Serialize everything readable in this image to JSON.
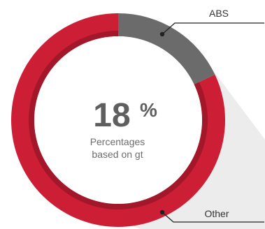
{
  "chart_data": {
    "type": "pie",
    "donut": true,
    "categories": [
      "ABS",
      "Other"
    ],
    "values": [
      18,
      82
    ],
    "unit": "%",
    "center_value": "18",
    "center_unit": "%",
    "center_caption_line1": "Percentages",
    "center_caption_line2": "based on gt",
    "legend": "callouts"
  },
  "colors": {
    "abs": "#6b6b6b",
    "other": "#cc1f36",
    "inner_rim": "#a3172a",
    "shadow": "#ececec",
    "callout_line": "#222222"
  }
}
